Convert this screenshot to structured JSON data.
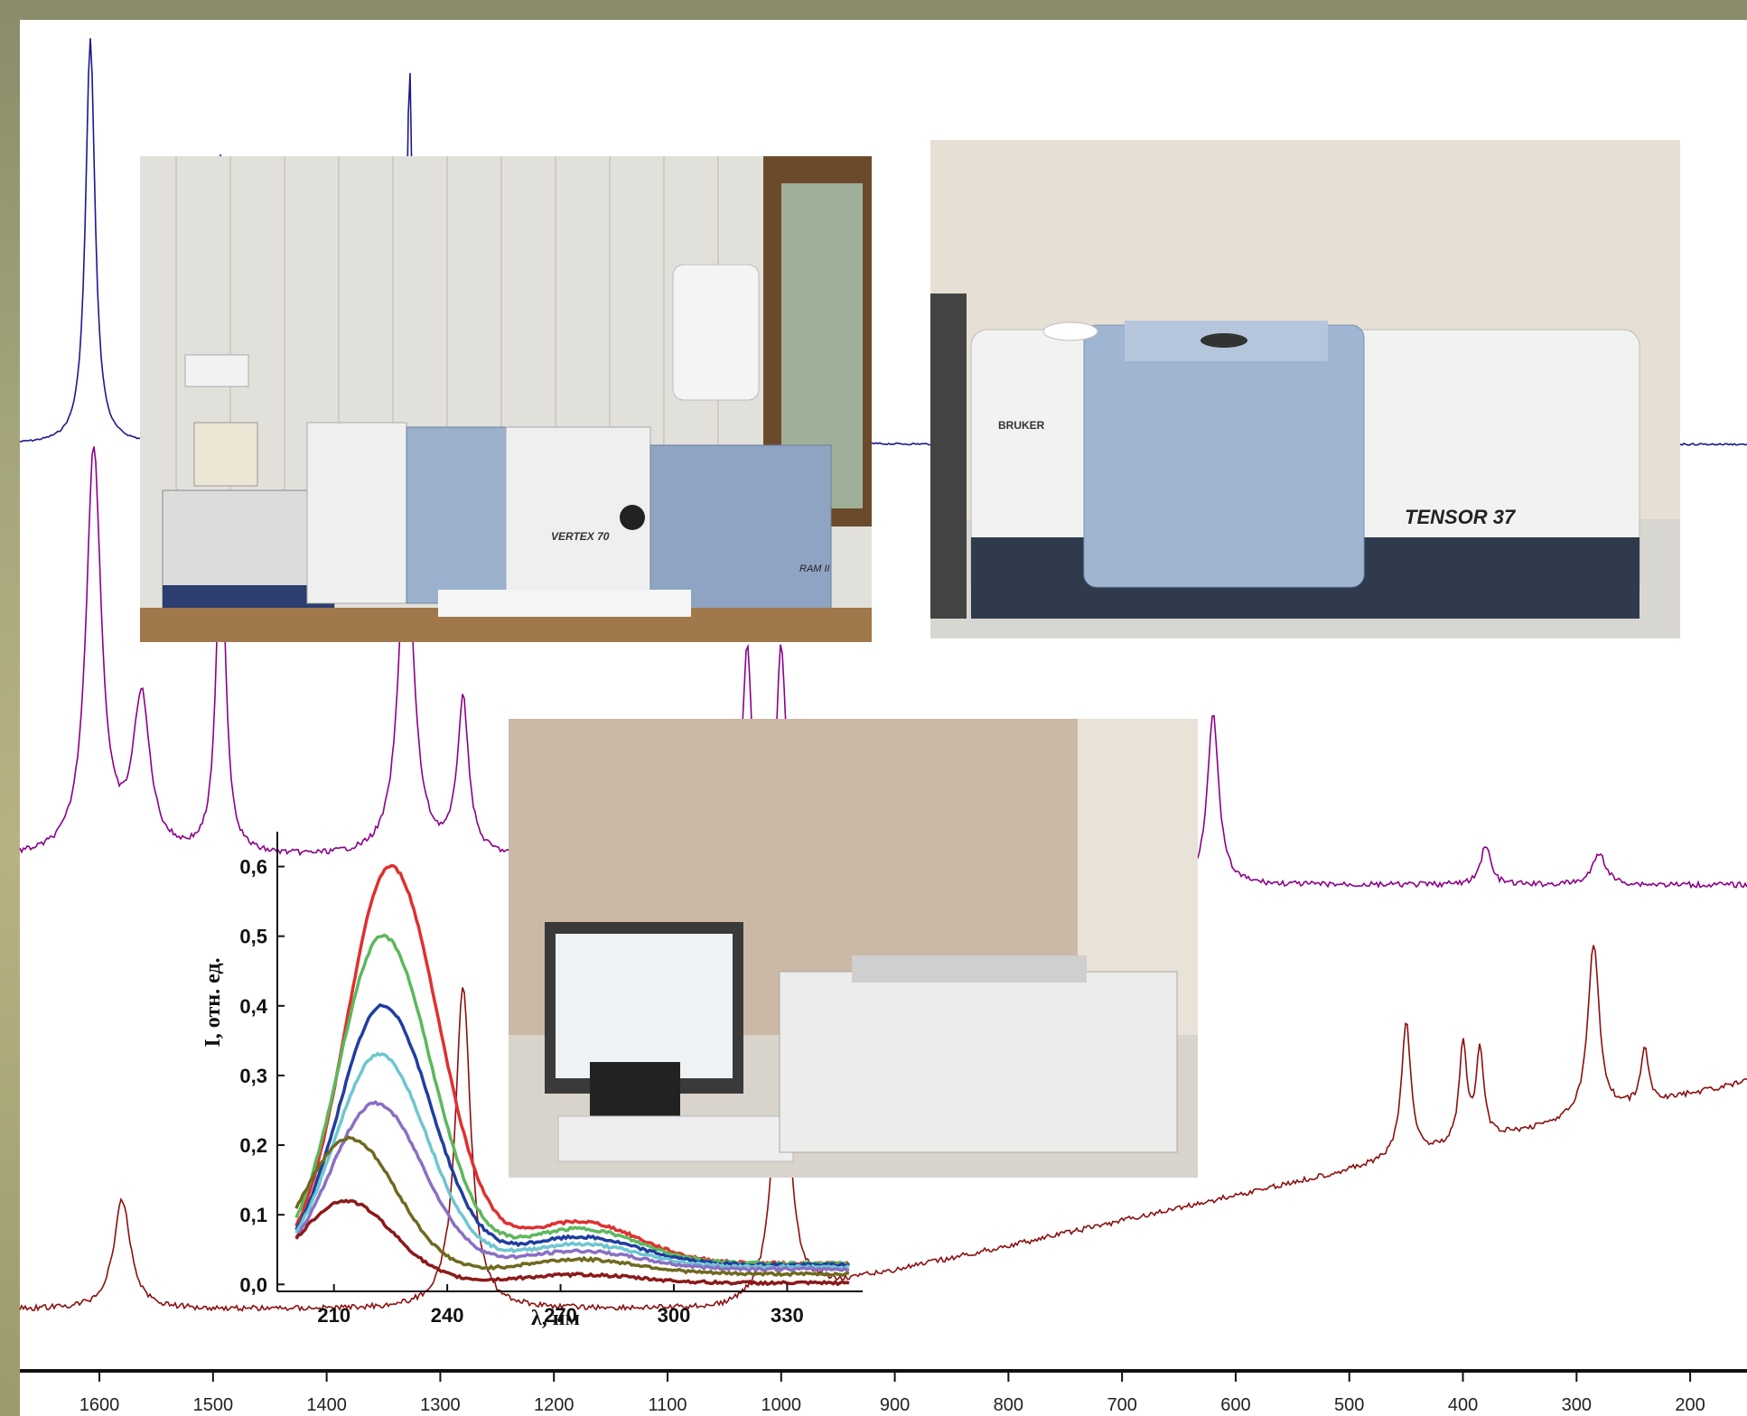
{
  "chart_data": [
    {
      "type": "line",
      "title": "",
      "xlabel": "",
      "ylabel": "",
      "x_ticks": [
        "1600",
        "1500",
        "1400",
        "1300",
        "1200",
        "1100",
        "1000",
        "900",
        "800",
        "700",
        "600",
        "500",
        "400",
        "300",
        "200"
      ],
      "xlim": [
        1670,
        150
      ],
      "series": [
        {
          "color": "#1a1a8c",
          "peaks": [
            1608,
            1493,
            1327,
            1005,
            280
          ]
        },
        {
          "color": "#8a008a",
          "peaks": [
            1605,
            1563,
            1493,
            1330,
            1280,
            1030,
            1000,
            620,
            380,
            280
          ]
        },
        {
          "color": "#8b0f0f",
          "peaks": [
            1580,
            1280,
            1000,
            450,
            400,
            385,
            285,
            240
          ]
        }
      ]
    },
    {
      "type": "line",
      "title": "",
      "xlabel": "λ, нм",
      "ylabel": "I, отн. ед.",
      "x_ticks": [
        "210",
        "240",
        "270",
        "300",
        "330"
      ],
      "y_ticks": [
        "0,0",
        "0,1",
        "0,2",
        "0,3",
        "0,4",
        "0,5",
        "0,6"
      ],
      "xlim": [
        195,
        350
      ],
      "ylim": [
        -0.01,
        0.65
      ],
      "series": [
        {
          "color": "#e03030",
          "peak_x": 225,
          "peak_y": 0.6,
          "end_y": 0.03
        },
        {
          "color": "#5cb85c",
          "peak_x": 223,
          "peak_y": 0.5,
          "end_y": 0.03
        },
        {
          "color": "#1f3f9f",
          "peak_x": 223,
          "peak_y": 0.4,
          "end_y": 0.028
        },
        {
          "color": "#6ec6d0",
          "peak_x": 222,
          "peak_y": 0.33,
          "end_y": 0.025
        },
        {
          "color": "#8a6fc4",
          "peak_x": 221,
          "peak_y": 0.26,
          "end_y": 0.022
        },
        {
          "color": "#6f6a20",
          "peak_x": 214,
          "peak_y": 0.21,
          "end_y": 0.015
        },
        {
          "color": "#8b1a1a",
          "peak_x": 213,
          "peak_y": 0.12,
          "end_y": 0.002
        }
      ]
    }
  ],
  "photos": {
    "vertex": {
      "label_model": "VERTEX 70",
      "label_ram": "RAM II"
    },
    "tensor": {
      "brand": "BRUKER",
      "model": "TENSOR 37"
    },
    "uvvis": {}
  }
}
